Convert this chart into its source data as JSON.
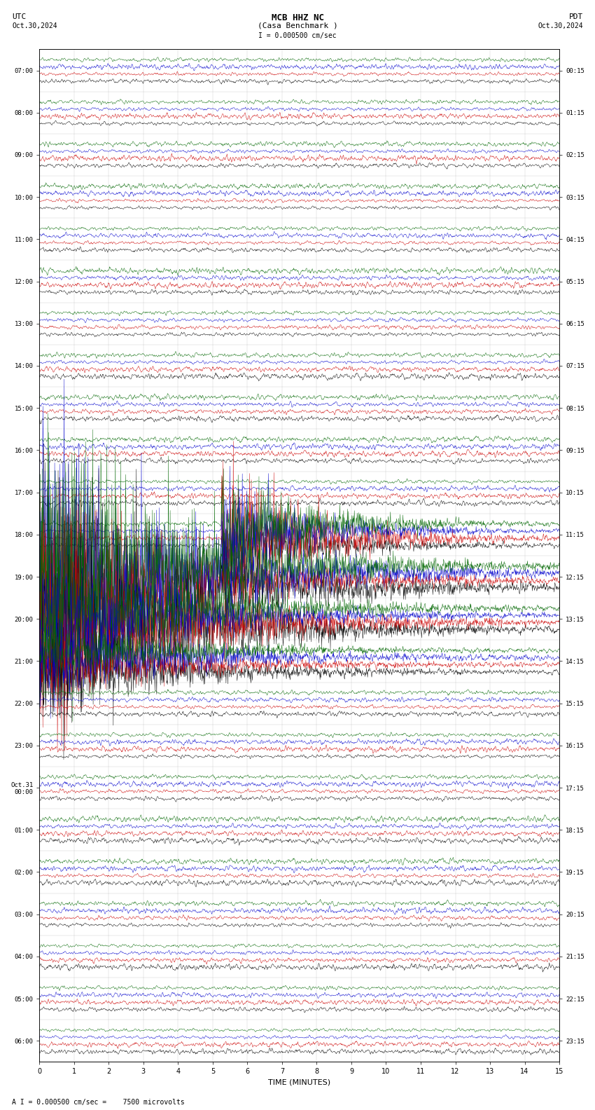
{
  "title_line1": "MCB HHZ NC",
  "title_line2": "(Casa Benchmark )",
  "scale_text": "I = 0.000500 cm/sec",
  "bottom_text": "A I = 0.000500 cm/sec =    7500 microvolts",
  "left_label": "UTC",
  "left_date": "Oct.30,2024",
  "right_label": "PDT",
  "right_date": "Oct.30,2024",
  "xlabel": "TIME (MINUTES)",
  "xlim": [
    0,
    15
  ],
  "bg_color": "#ffffff",
  "trace_colors": [
    "#000000",
    "#cc0000",
    "#0000cc",
    "#006600"
  ],
  "left_times": [
    "07:00",
    "08:00",
    "09:00",
    "10:00",
    "11:00",
    "12:00",
    "13:00",
    "14:00",
    "15:00",
    "16:00",
    "17:00",
    "18:00",
    "19:00",
    "20:00",
    "21:00",
    "22:00",
    "23:00",
    "Oct.31\n00:00",
    "01:00",
    "02:00",
    "03:00",
    "04:00",
    "05:00",
    "06:00"
  ],
  "right_times": [
    "00:15",
    "01:15",
    "02:15",
    "03:15",
    "04:15",
    "05:15",
    "06:15",
    "07:15",
    "08:15",
    "09:15",
    "10:15",
    "11:15",
    "12:15",
    "13:15",
    "14:15",
    "15:15",
    "16:15",
    "17:15",
    "18:15",
    "19:15",
    "20:15",
    "21:15",
    "22:15",
    "23:15"
  ],
  "n_rows": 24,
  "n_channels": 4,
  "minutes": 15,
  "n_pts": 1500,
  "noise_base": 0.08,
  "event_rows": [
    11,
    12,
    13,
    14
  ],
  "event_amplitudes": [
    1.5,
    3.0,
    2.0,
    0.8
  ],
  "grid_color": "#aaaaaa",
  "tick_color": "#000000"
}
